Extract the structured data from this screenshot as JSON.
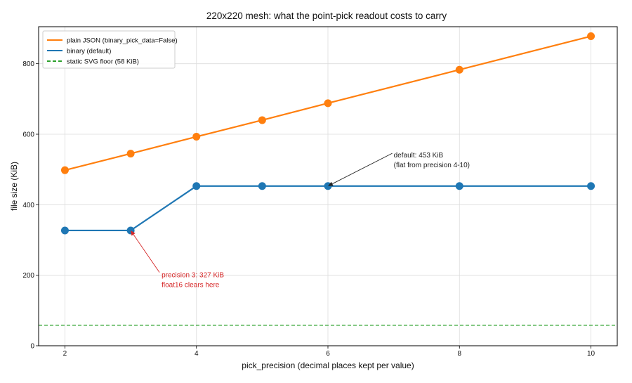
{
  "chart_data": {
    "type": "line",
    "title": "220x220 mesh: what the point-pick readout costs to carry",
    "xlabel": "pick_precision (decimal places kept per value)",
    "ylabel": "file size (KiB)",
    "xlim": [
      1.6,
      10.4
    ],
    "ylim": [
      0,
      905
    ],
    "xticks": [
      2,
      4,
      6,
      8,
      10
    ],
    "yticks": [
      0,
      200,
      400,
      600,
      800
    ],
    "grid": true,
    "legend_position": "top-left",
    "x": [
      2,
      3,
      4,
      5,
      6,
      8,
      10
    ],
    "series": [
      {
        "name": "plain JSON (binary_pick_data=False)",
        "color": "#ff7f0e",
        "values": [
          498,
          545,
          593,
          640,
          688,
          783,
          878
        ]
      },
      {
        "name": "binary (default)",
        "color": "#1f77b4",
        "values": [
          327,
          327,
          453,
          453,
          453,
          453,
          453
        ]
      }
    ],
    "reference_lines": [
      {
        "name": "static SVG floor (58 KiB)",
        "value": 58,
        "color": "#2ca02c",
        "style": "dashed"
      }
    ],
    "annotations": [
      {
        "lines": [
          "default: 453 KiB",
          "(flat from precision 4-10)"
        ],
        "point": [
          6,
          453
        ],
        "text_at": [
          7,
          540
        ],
        "color": "#222222"
      },
      {
        "lines": [
          "precision 3: 327 KiB",
          "float16 clears here"
        ],
        "point": [
          3,
          327
        ],
        "text_at": [
          3.47,
          200
        ],
        "color": "#d62728"
      }
    ]
  }
}
